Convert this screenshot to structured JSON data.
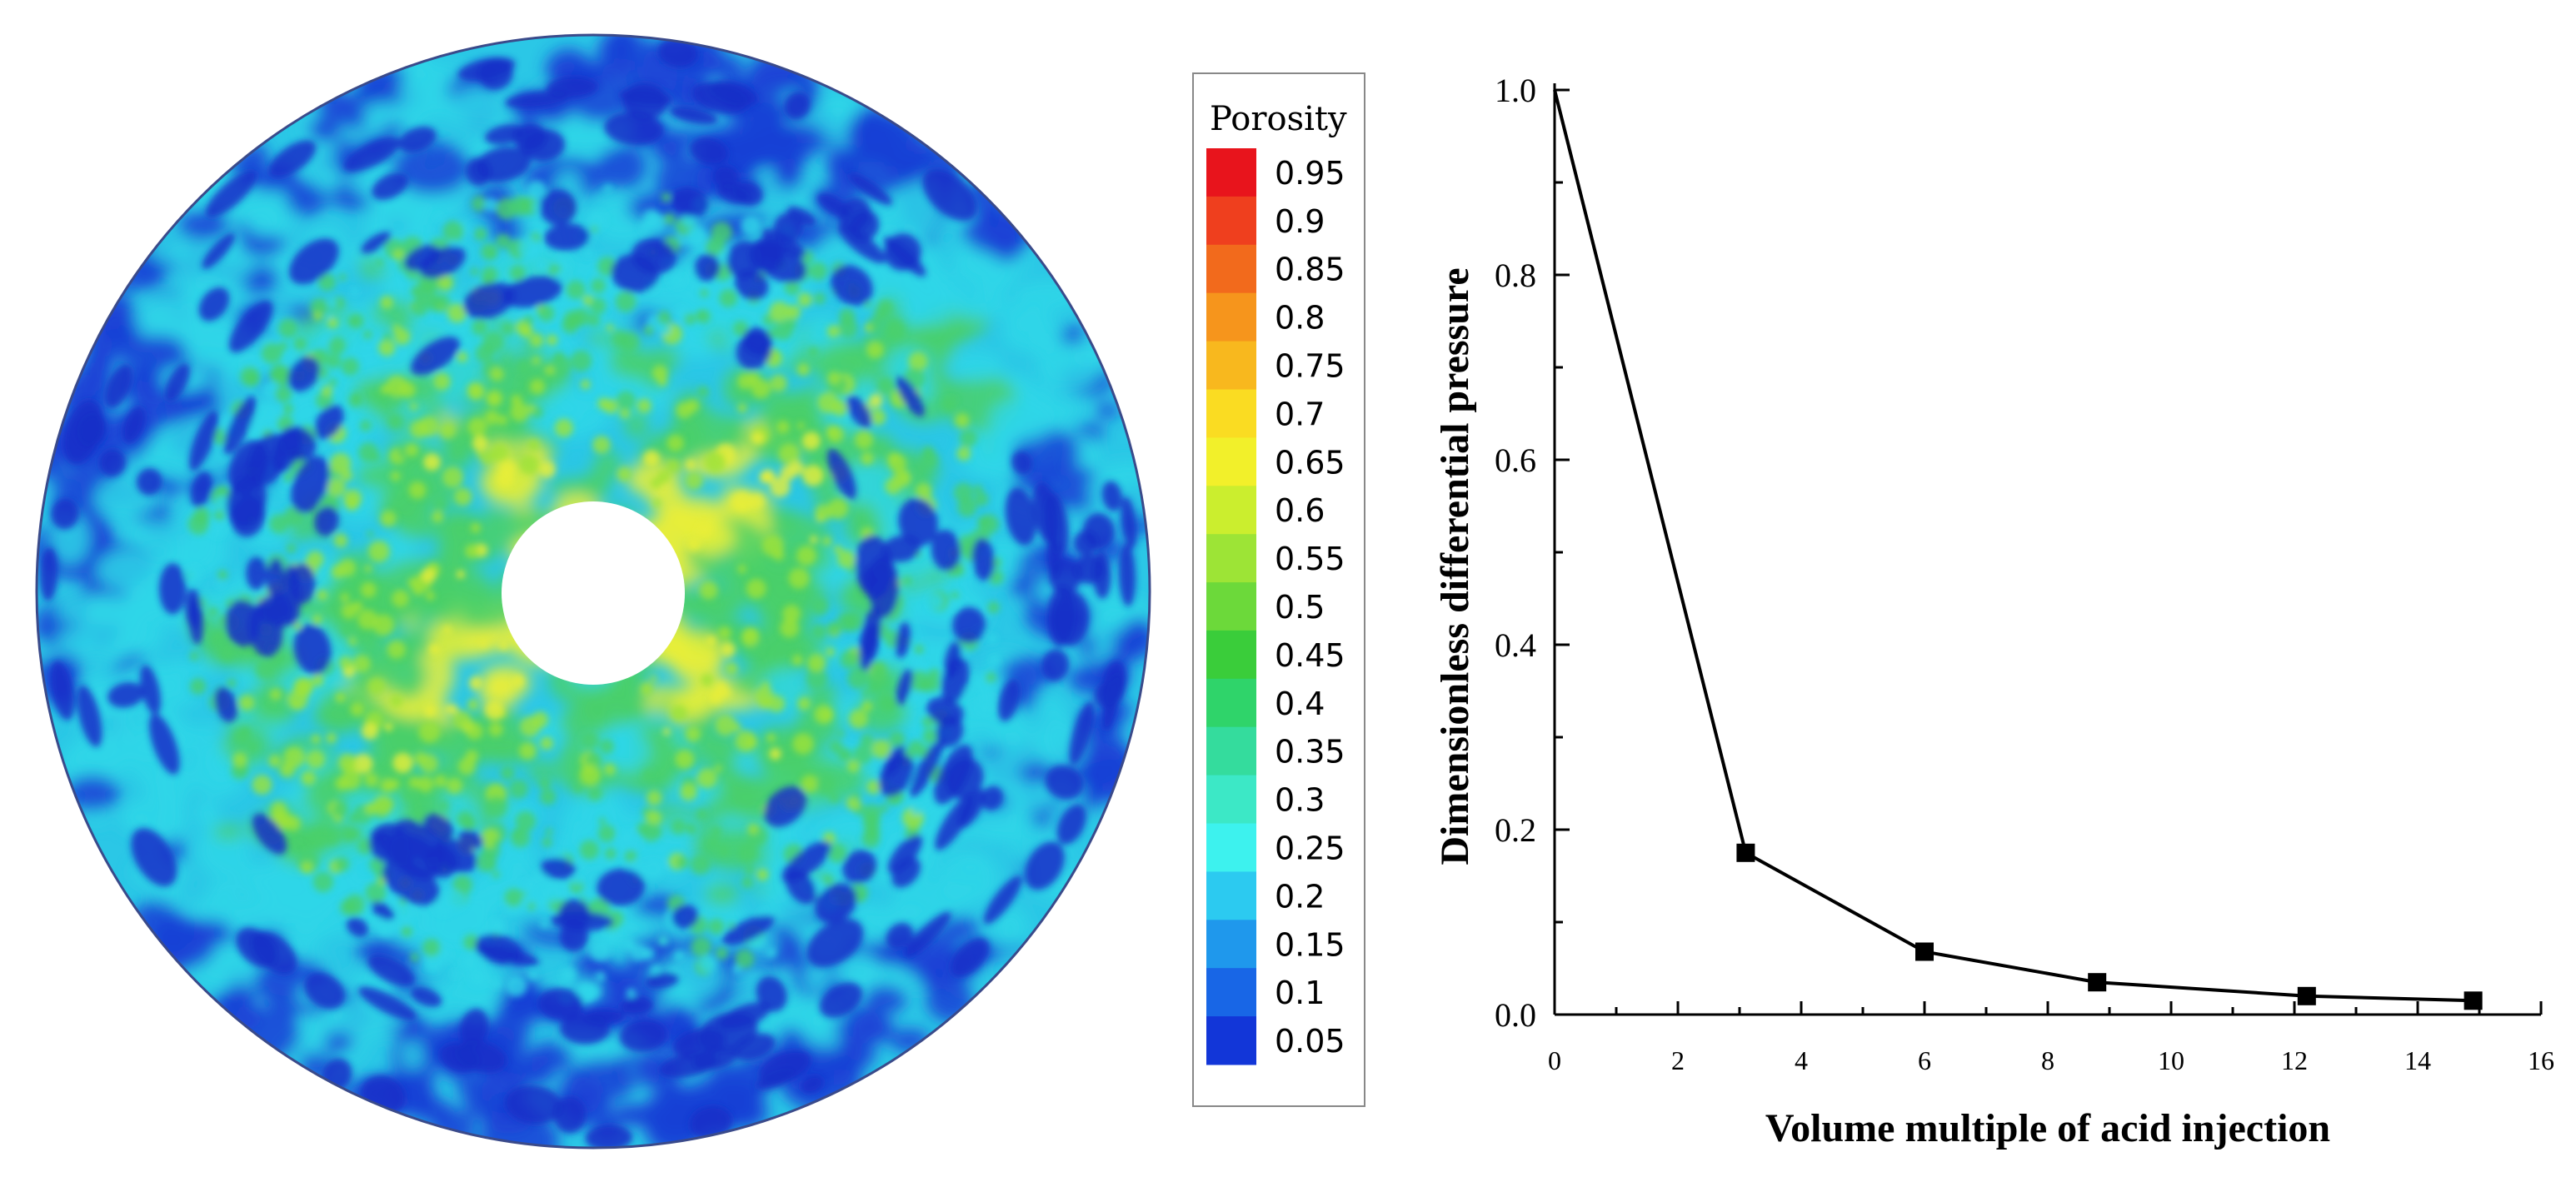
{
  "colorbar": {
    "title": "Porosity",
    "ticks": [
      "0.95",
      "0.9",
      "0.85",
      "0.8",
      "0.75",
      "0.7",
      "0.65",
      "0.6",
      "0.55",
      "0.5",
      "0.45",
      "0.4",
      "0.35",
      "0.3",
      "0.25",
      "0.2",
      "0.15",
      "0.1",
      "0.05"
    ],
    "colors": [
      "#e8141c",
      "#ef3f1e",
      "#f26a1c",
      "#f6951c",
      "#f8b81e",
      "#fadc22",
      "#f2f02a",
      "#cbee2e",
      "#9de436",
      "#6cd93a",
      "#3acd3a",
      "#2fd46a",
      "#34dc9d",
      "#3ce8c6",
      "#3df2ee",
      "#2ccaf0",
      "#1f98ec",
      "#1866e6",
      "#1236d8"
    ]
  },
  "disk_plot": {
    "colors": {
      "low": "#1a3fd6",
      "mid_low": "#2fd6e8",
      "mid": "#4ad06a",
      "high": "#e9ee3a",
      "hole": "#ffffff"
    }
  },
  "chart_data": {
    "type": "line",
    "xlabel": "Volume multiple of acid injection",
    "ylabel": "Dimensionless differential pressure",
    "xlim": [
      0,
      16
    ],
    "ylim": [
      0,
      1.0
    ],
    "xticks": [
      0,
      2,
      4,
      6,
      8,
      10,
      12,
      14,
      16
    ],
    "yticks": [
      "0.0",
      "0.2",
      "0.4",
      "0.6",
      "0.8",
      "1.0"
    ],
    "x": [
      0,
      3.1,
      6.0,
      8.8,
      12.2,
      14.9
    ],
    "y": [
      1.0,
      0.175,
      0.068,
      0.035,
      0.02,
      0.015
    ],
    "marker": "square",
    "line_color": "#000000"
  }
}
